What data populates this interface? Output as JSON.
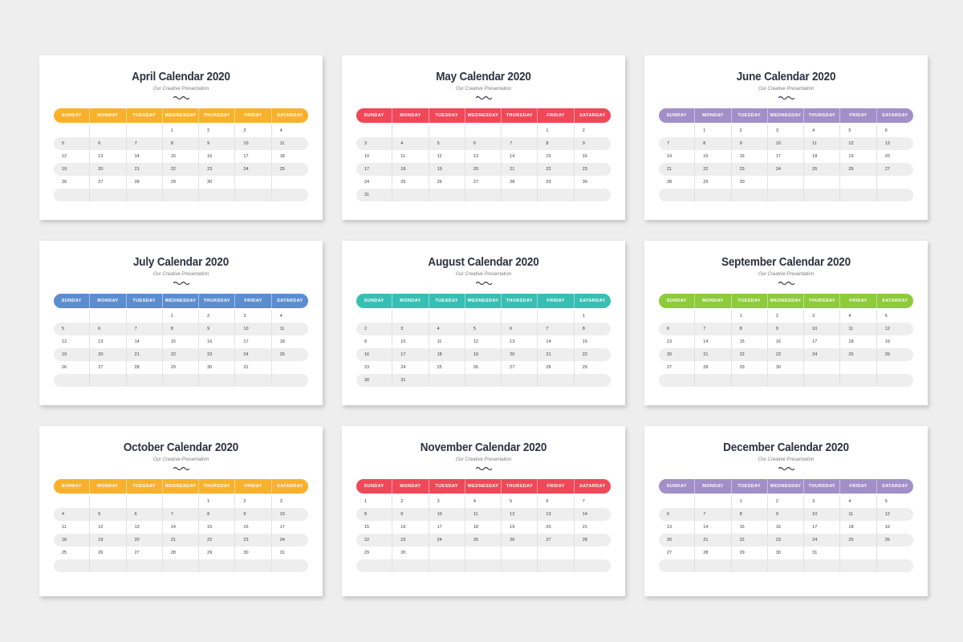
{
  "subtitle": "Our Creative Presentation",
  "day_names": [
    "SUNDAY",
    "MONDAY",
    "TUESDAY",
    "WEDNESDAY",
    "THURSDAY",
    "FRIDAY",
    "SATARDAY"
  ],
  "months": [
    {
      "title": "April Calendar 2020",
      "accent": "#f9b12c",
      "weeks": [
        [
          "",
          "",
          "",
          "1",
          "2",
          "3",
          "4"
        ],
        [
          "5",
          "6",
          "7",
          "8",
          "9",
          "10",
          "11"
        ],
        [
          "12",
          "13",
          "14",
          "15",
          "16",
          "17",
          "18"
        ],
        [
          "19",
          "20",
          "21",
          "22",
          "23",
          "24",
          "25"
        ],
        [
          "26",
          "27",
          "28",
          "29",
          "30",
          "",
          ""
        ],
        [
          "",
          "",
          "",
          "",
          "",
          "",
          ""
        ]
      ]
    },
    {
      "title": "May Calendar 2020",
      "accent": "#f04858",
      "weeks": [
        [
          "",
          "",
          "",
          "",
          "",
          "1",
          "2"
        ],
        [
          "3",
          "4",
          "5",
          "6",
          "7",
          "8",
          "9"
        ],
        [
          "10",
          "11",
          "12",
          "13",
          "14",
          "15",
          "16"
        ],
        [
          "17",
          "18",
          "19",
          "20",
          "21",
          "22",
          "23"
        ],
        [
          "24",
          "25",
          "26",
          "27",
          "28",
          "29",
          "30"
        ],
        [
          "31",
          "",
          "",
          "",
          "",
          "",
          ""
        ]
      ]
    },
    {
      "title": "June Calendar 2020",
      "accent": "#a18fc8",
      "weeks": [
        [
          "",
          "1",
          "2",
          "3",
          "4",
          "5",
          "6"
        ],
        [
          "7",
          "8",
          "9",
          "10",
          "11",
          "12",
          "13"
        ],
        [
          "14",
          "15",
          "16",
          "17",
          "18",
          "19",
          "20"
        ],
        [
          "21",
          "22",
          "23",
          "24",
          "25",
          "26",
          "27"
        ],
        [
          "28",
          "29",
          "30",
          "",
          "",
          "",
          ""
        ],
        [
          "",
          "",
          "",
          "",
          "",
          "",
          ""
        ]
      ]
    },
    {
      "title": "July Calendar 2020",
      "accent": "#5b8dd0",
      "weeks": [
        [
          "",
          "",
          "",
          "1",
          "2",
          "3",
          "4"
        ],
        [
          "5",
          "6",
          "7",
          "8",
          "9",
          "10",
          "11"
        ],
        [
          "12",
          "13",
          "14",
          "15",
          "16",
          "17",
          "18"
        ],
        [
          "19",
          "20",
          "21",
          "22",
          "23",
          "24",
          "25"
        ],
        [
          "26",
          "27",
          "28",
          "29",
          "30",
          "31",
          ""
        ],
        [
          "",
          "",
          "",
          "",
          "",
          "",
          ""
        ]
      ]
    },
    {
      "title": "August Calendar 2020",
      "accent": "#38bfb4",
      "weeks": [
        [
          "",
          "",
          "",
          "",
          "",
          "",
          "1"
        ],
        [
          "2",
          "3",
          "4",
          "5",
          "6",
          "7",
          "8"
        ],
        [
          "9",
          "10",
          "11",
          "12",
          "13",
          "14",
          "15"
        ],
        [
          "16",
          "17",
          "18",
          "19",
          "20",
          "21",
          "22"
        ],
        [
          "23",
          "24",
          "25",
          "26",
          "27",
          "28",
          "29"
        ],
        [
          "30",
          "31",
          "",
          "",
          "",
          "",
          ""
        ]
      ]
    },
    {
      "title": "September Calendar 2020",
      "accent": "#8dcb3a",
      "weeks": [
        [
          "",
          "",
          "1",
          "2",
          "3",
          "4",
          "5"
        ],
        [
          "6",
          "7",
          "8",
          "9",
          "10",
          "11",
          "12"
        ],
        [
          "13",
          "14",
          "15",
          "16",
          "17",
          "18",
          "19"
        ],
        [
          "20",
          "21",
          "22",
          "23",
          "24",
          "25",
          "26"
        ],
        [
          "27",
          "28",
          "29",
          "30",
          "",
          "",
          ""
        ],
        [
          "",
          "",
          "",
          "",
          "",
          "",
          ""
        ]
      ]
    },
    {
      "title": "October Calendar 2020",
      "accent": "#f9b12c",
      "weeks": [
        [
          "",
          "",
          "",
          "",
          "1",
          "2",
          "3"
        ],
        [
          "4",
          "5",
          "6",
          "7",
          "8",
          "9",
          "10"
        ],
        [
          "11",
          "12",
          "13",
          "14",
          "15",
          "16",
          "17"
        ],
        [
          "18",
          "19",
          "20",
          "21",
          "22",
          "23",
          "24"
        ],
        [
          "25",
          "26",
          "27",
          "28",
          "29",
          "30",
          "31"
        ],
        [
          "",
          "",
          "",
          "",
          "",
          "",
          ""
        ]
      ]
    },
    {
      "title": "November Calendar 2020",
      "accent": "#f04858",
      "weeks": [
        [
          "1",
          "2",
          "3",
          "4",
          "5",
          "6",
          "7"
        ],
        [
          "8",
          "9",
          "10",
          "11",
          "12",
          "13",
          "14"
        ],
        [
          "15",
          "16",
          "17",
          "18",
          "19",
          "20",
          "21"
        ],
        [
          "22",
          "23",
          "24",
          "25",
          "26",
          "27",
          "28"
        ],
        [
          "29",
          "30",
          "",
          "",
          "",
          "",
          ""
        ],
        [
          "",
          "",
          "",
          "",
          "",
          "",
          ""
        ]
      ]
    },
    {
      "title": "December Calendar 2020",
      "accent": "#a18fc8",
      "weeks": [
        [
          "",
          "",
          "1",
          "2",
          "3",
          "4",
          "5"
        ],
        [
          "6",
          "7",
          "8",
          "9",
          "10",
          "11",
          "12"
        ],
        [
          "13",
          "14",
          "15",
          "16",
          "17",
          "18",
          "19"
        ],
        [
          "20",
          "21",
          "22",
          "23",
          "24",
          "25",
          "26"
        ],
        [
          "27",
          "28",
          "29",
          "30",
          "31",
          "",
          ""
        ],
        [
          "",
          "",
          "",
          "",
          "",
          "",
          ""
        ]
      ]
    }
  ]
}
